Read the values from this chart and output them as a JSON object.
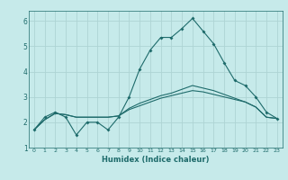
{
  "xlabel": "Humidex (Indice chaleur)",
  "xlim": [
    -0.5,
    23.5
  ],
  "ylim": [
    1.0,
    6.4
  ],
  "yticks": [
    1,
    2,
    3,
    4,
    5,
    6
  ],
  "xticks": [
    0,
    1,
    2,
    3,
    4,
    5,
    6,
    7,
    8,
    9,
    10,
    11,
    12,
    13,
    14,
    15,
    16,
    17,
    18,
    19,
    20,
    21,
    22,
    23
  ],
  "bg_color": "#c6eaea",
  "grid_color": "#aed4d4",
  "line_color": "#1e6b6b",
  "line1_x": [
    0,
    1,
    2,
    3,
    4,
    5,
    6,
    7,
    8,
    9,
    10,
    11,
    12,
    13,
    14,
    15,
    16,
    17,
    18,
    19,
    20,
    21,
    22,
    23
  ],
  "line1_y": [
    1.7,
    2.2,
    2.4,
    2.2,
    1.5,
    2.0,
    2.0,
    1.7,
    2.2,
    3.0,
    4.1,
    4.85,
    5.35,
    5.35,
    5.7,
    6.1,
    5.6,
    5.1,
    4.35,
    3.65,
    3.45,
    3.0,
    2.4,
    2.15
  ],
  "line2_x": [
    0,
    1,
    2,
    3,
    4,
    5,
    6,
    7,
    8,
    9,
    10,
    11,
    12,
    13,
    14,
    15,
    16,
    17,
    18,
    19,
    20,
    21,
    22,
    23
  ],
  "line2_y": [
    1.7,
    2.1,
    2.35,
    2.3,
    2.2,
    2.2,
    2.2,
    2.2,
    2.25,
    2.5,
    2.65,
    2.8,
    2.95,
    3.05,
    3.15,
    3.25,
    3.2,
    3.1,
    3.0,
    2.9,
    2.8,
    2.6,
    2.2,
    2.15
  ],
  "line3_x": [
    0,
    1,
    2,
    3,
    4,
    5,
    6,
    7,
    8,
    9,
    10,
    11,
    12,
    13,
    14,
    15,
    16,
    17,
    18,
    19,
    20,
    21,
    22,
    23
  ],
  "line3_y": [
    1.7,
    2.1,
    2.35,
    2.3,
    2.2,
    2.2,
    2.2,
    2.2,
    2.25,
    2.55,
    2.75,
    2.9,
    3.05,
    3.15,
    3.3,
    3.45,
    3.35,
    3.25,
    3.1,
    2.95,
    2.8,
    2.6,
    2.2,
    2.15
  ]
}
